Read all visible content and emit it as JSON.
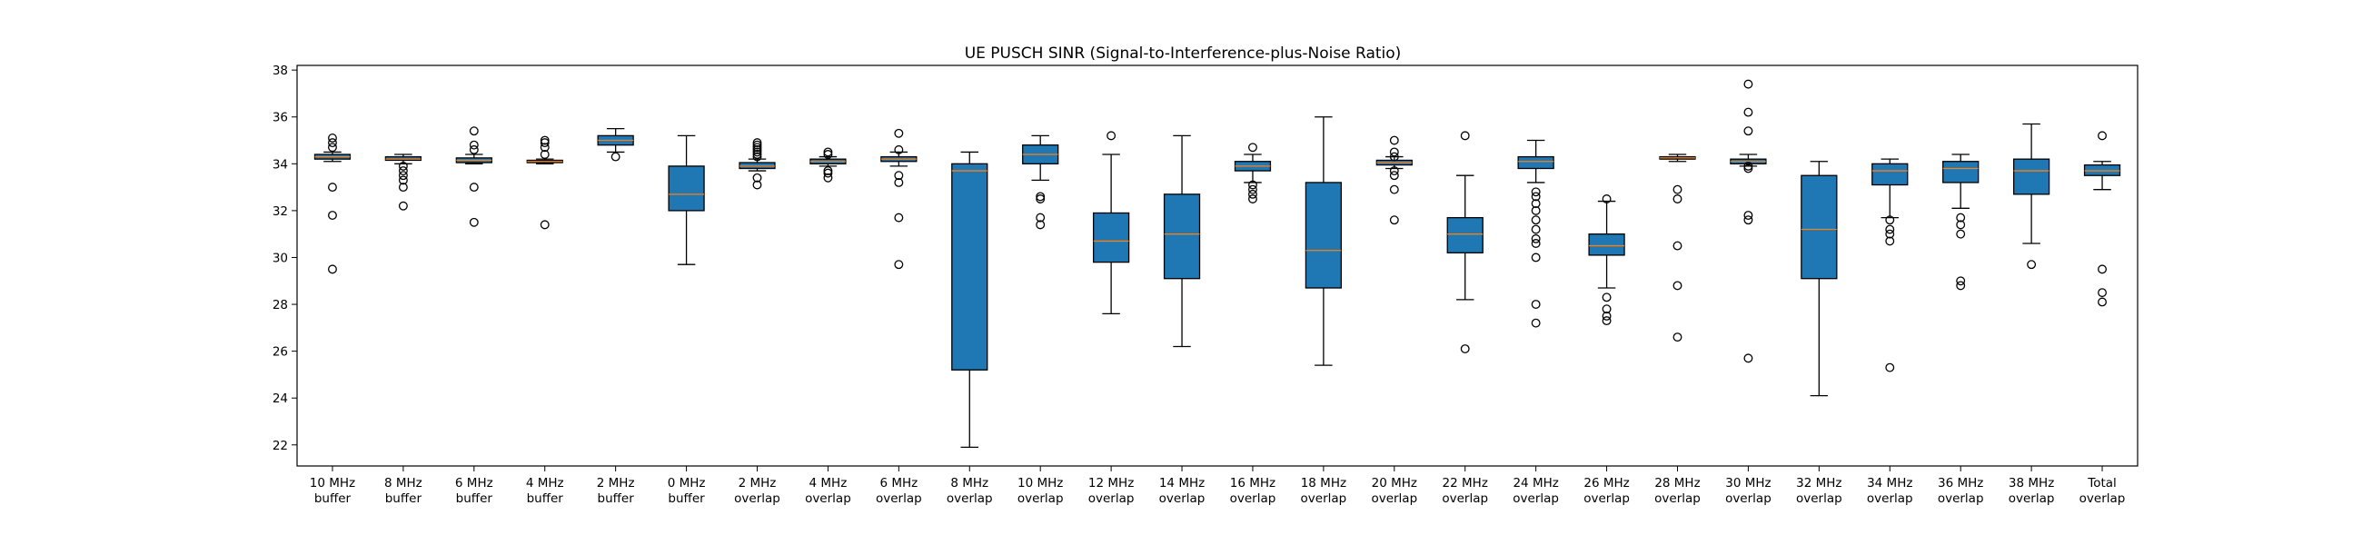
{
  "chart_data": {
    "type": "box",
    "title": "UE PUSCH SINR (Signal-to-Interference-plus-Noise Ratio)",
    "xlabel": "",
    "ylabel": "",
    "ylim": [
      21.1,
      38.2
    ],
    "yticks": [
      22,
      24,
      26,
      28,
      30,
      32,
      34,
      36,
      38
    ],
    "grid": false,
    "box_color": "#1f77b4",
    "median_color": "#ff7f0e",
    "categories": [
      {
        "line1": "10 MHz",
        "line2": "buffer"
      },
      {
        "line1": "8 MHz",
        "line2": "buffer"
      },
      {
        "line1": "6 MHz",
        "line2": "buffer"
      },
      {
        "line1": "4 MHz",
        "line2": "buffer"
      },
      {
        "line1": "2 MHz",
        "line2": "buffer"
      },
      {
        "line1": "0 MHz",
        "line2": "buffer"
      },
      {
        "line1": "2 MHz",
        "line2": "overlap"
      },
      {
        "line1": "4 MHz",
        "line2": "overlap"
      },
      {
        "line1": "6 MHz",
        "line2": "overlap"
      },
      {
        "line1": "8 MHz",
        "line2": "overlap"
      },
      {
        "line1": "10 MHz",
        "line2": "overlap"
      },
      {
        "line1": "12 MHz",
        "line2": "overlap"
      },
      {
        "line1": "14 MHz",
        "line2": "overlap"
      },
      {
        "line1": "16 MHz",
        "line2": "overlap"
      },
      {
        "line1": "18 MHz",
        "line2": "overlap"
      },
      {
        "line1": "20 MHz",
        "line2": "overlap"
      },
      {
        "line1": "22 MHz",
        "line2": "overlap"
      },
      {
        "line1": "24 MHz",
        "line2": "overlap"
      },
      {
        "line1": "26 MHz",
        "line2": "overlap"
      },
      {
        "line1": "28 MHz",
        "line2": "overlap"
      },
      {
        "line1": "30 MHz",
        "line2": "overlap"
      },
      {
        "line1": "32 MHz",
        "line2": "overlap"
      },
      {
        "line1": "34 MHz",
        "line2": "overlap"
      },
      {
        "line1": "36 MHz",
        "line2": "overlap"
      },
      {
        "line1": "38 MHz",
        "line2": "overlap"
      },
      {
        "line1": "Total",
        "line2": "overlap"
      }
    ],
    "boxes": [
      {
        "whislo": 34.1,
        "q1": 34.2,
        "med": 34.3,
        "q3": 34.4,
        "whishi": 34.5,
        "fliers": [
          35.1,
          34.9,
          34.7,
          33.0,
          31.8,
          29.5
        ]
      },
      {
        "whislo": 34.0,
        "q1": 34.15,
        "med": 34.2,
        "q3": 34.3,
        "whishi": 34.4,
        "fliers": [
          33.9,
          33.7,
          33.5,
          33.3,
          33.0,
          32.2
        ]
      },
      {
        "whislo": 34.0,
        "q1": 34.05,
        "med": 34.15,
        "q3": 34.25,
        "whishi": 34.4,
        "fliers": [
          35.4,
          34.8,
          34.6,
          33.0,
          31.5
        ]
      },
      {
        "whislo": 34.0,
        "q1": 34.05,
        "med": 34.1,
        "q3": 34.15,
        "whishi": 34.2,
        "fliers": [
          35.0,
          34.9,
          34.7,
          34.4,
          31.4
        ]
      },
      {
        "whislo": 34.5,
        "q1": 34.8,
        "med": 35.0,
        "q3": 35.2,
        "whishi": 35.5,
        "fliers": [
          34.3
        ]
      },
      {
        "whislo": 29.7,
        "q1": 32.0,
        "med": 32.7,
        "q3": 33.9,
        "whishi": 35.2,
        "fliers": []
      },
      {
        "whislo": 33.7,
        "q1": 33.8,
        "med": 33.9,
        "q3": 34.05,
        "whishi": 34.2,
        "fliers": [
          34.9,
          34.8,
          34.7,
          34.6,
          34.5,
          34.4,
          34.3,
          33.4,
          33.1
        ]
      },
      {
        "whislo": 33.9,
        "q1": 34.0,
        "med": 34.1,
        "q3": 34.2,
        "whishi": 34.3,
        "fliers": [
          34.5,
          34.4,
          33.7,
          33.6,
          33.4
        ]
      },
      {
        "whislo": 33.9,
        "q1": 34.1,
        "med": 34.2,
        "q3": 34.3,
        "whishi": 34.5,
        "fliers": [
          35.3,
          34.6,
          33.5,
          33.2,
          31.7,
          29.7
        ]
      },
      {
        "whislo": 21.9,
        "q1": 25.2,
        "med": 33.7,
        "q3": 34.0,
        "whishi": 34.5,
        "fliers": []
      },
      {
        "whislo": 33.3,
        "q1": 34.0,
        "med": 34.4,
        "q3": 34.8,
        "whishi": 35.2,
        "fliers": [
          32.6,
          32.5,
          31.7,
          31.4
        ]
      },
      {
        "whislo": 27.6,
        "q1": 29.8,
        "med": 30.7,
        "q3": 31.9,
        "whishi": 34.4,
        "fliers": [
          35.2
        ]
      },
      {
        "whislo": 26.2,
        "q1": 29.1,
        "med": 31.0,
        "q3": 32.7,
        "whishi": 35.2,
        "fliers": []
      },
      {
        "whislo": 33.2,
        "q1": 33.7,
        "med": 33.9,
        "q3": 34.1,
        "whishi": 34.4,
        "fliers": [
          34.7,
          33.1,
          32.9,
          32.7,
          32.5
        ]
      },
      {
        "whislo": 25.4,
        "q1": 28.7,
        "med": 30.3,
        "q3": 33.2,
        "whishi": 36.0,
        "fliers": []
      },
      {
        "whislo": 33.8,
        "q1": 33.95,
        "med": 34.05,
        "q3": 34.15,
        "whishi": 34.3,
        "fliers": [
          35.0,
          34.5,
          34.3,
          33.7,
          33.5,
          32.9,
          31.6
        ]
      },
      {
        "whislo": 28.2,
        "q1": 30.2,
        "med": 31.0,
        "q3": 31.7,
        "whishi": 33.5,
        "fliers": [
          35.2,
          26.1
        ]
      },
      {
        "whislo": 33.2,
        "q1": 33.8,
        "med": 34.1,
        "q3": 34.3,
        "whishi": 35.0,
        "fliers": [
          32.8,
          32.6,
          32.3,
          32.0,
          31.6,
          31.2,
          30.8,
          30.6,
          30.0,
          28.0,
          27.2
        ]
      },
      {
        "whislo": 28.7,
        "q1": 30.1,
        "med": 30.5,
        "q3": 31.0,
        "whishi": 32.4,
        "fliers": [
          32.5,
          28.3,
          27.8,
          27.5,
          27.3
        ]
      },
      {
        "whislo": 34.1,
        "q1": 34.2,
        "med": 34.25,
        "q3": 34.3,
        "whishi": 34.4,
        "fliers": [
          32.9,
          32.5,
          30.5,
          28.8,
          26.6
        ]
      },
      {
        "whislo": 33.9,
        "q1": 34.0,
        "med": 34.1,
        "q3": 34.2,
        "whishi": 34.4,
        "fliers": [
          37.4,
          36.2,
          35.4,
          33.9,
          33.8,
          31.8,
          31.6,
          25.7
        ]
      },
      {
        "whislo": 24.1,
        "q1": 29.1,
        "med": 31.2,
        "q3": 33.5,
        "whishi": 34.1,
        "fliers": []
      },
      {
        "whislo": 31.7,
        "q1": 33.1,
        "med": 33.7,
        "q3": 34.0,
        "whishi": 34.2,
        "fliers": [
          31.6,
          31.2,
          31.0,
          30.7,
          25.3
        ]
      },
      {
        "whislo": 32.1,
        "q1": 33.2,
        "med": 33.8,
        "q3": 34.1,
        "whishi": 34.4,
        "fliers": [
          31.7,
          31.4,
          31.0,
          29.0,
          28.8
        ]
      },
      {
        "whislo": 30.6,
        "q1": 32.7,
        "med": 33.7,
        "q3": 34.2,
        "whishi": 35.7,
        "fliers": [
          29.7
        ]
      },
      {
        "whislo": 32.9,
        "q1": 33.5,
        "med": 33.7,
        "q3": 33.95,
        "whishi": 34.1,
        "fliers": [
          35.2,
          29.5,
          28.5,
          28.1
        ]
      }
    ]
  }
}
